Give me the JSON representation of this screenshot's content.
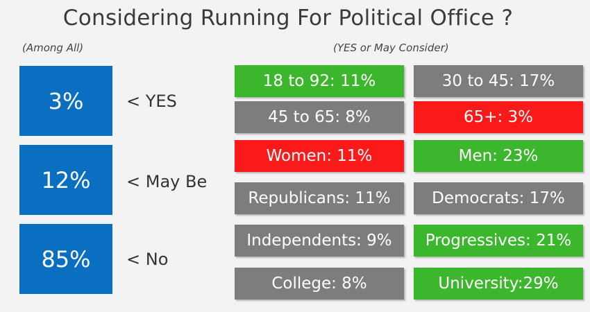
{
  "title": "Considering Running For Political Office ?",
  "subtitle_left": "(Among All)",
  "subtitle_right": "(YES or May Consider)",
  "colors": {
    "blue": "#0a6ec1",
    "green": "#3cb62c",
    "gray": "#7d7d7d",
    "red": "#fb1a1a"
  },
  "chart_data": {
    "type": "table",
    "overall": [
      {
        "value": "3%",
        "label": "< YES"
      },
      {
        "value": "12%",
        "label": "< May Be"
      },
      {
        "value": "85%",
        "label": "< No"
      }
    ],
    "breakdown": [
      {
        "text": "18 to 92: 11%",
        "color": "green"
      },
      {
        "text": "30 to 45: 17%",
        "color": "gray"
      },
      {
        "text": "45 to 65: 8%",
        "color": "gray"
      },
      {
        "text": "65+: 3%",
        "color": "red"
      },
      {
        "text": "Women: 11%",
        "color": "red"
      },
      {
        "text": "Men: 23%",
        "color": "green"
      },
      {
        "text": "Republicans: 11%",
        "color": "gray"
      },
      {
        "text": "Democrats: 17%",
        "color": "gray"
      },
      {
        "text": "Independents: 9%",
        "color": "gray"
      },
      {
        "text": "Progressives: 21%",
        "color": "green"
      },
      {
        "text": "College: 8%",
        "color": "gray"
      },
      {
        "text": "University:29%",
        "color": "green"
      }
    ]
  }
}
